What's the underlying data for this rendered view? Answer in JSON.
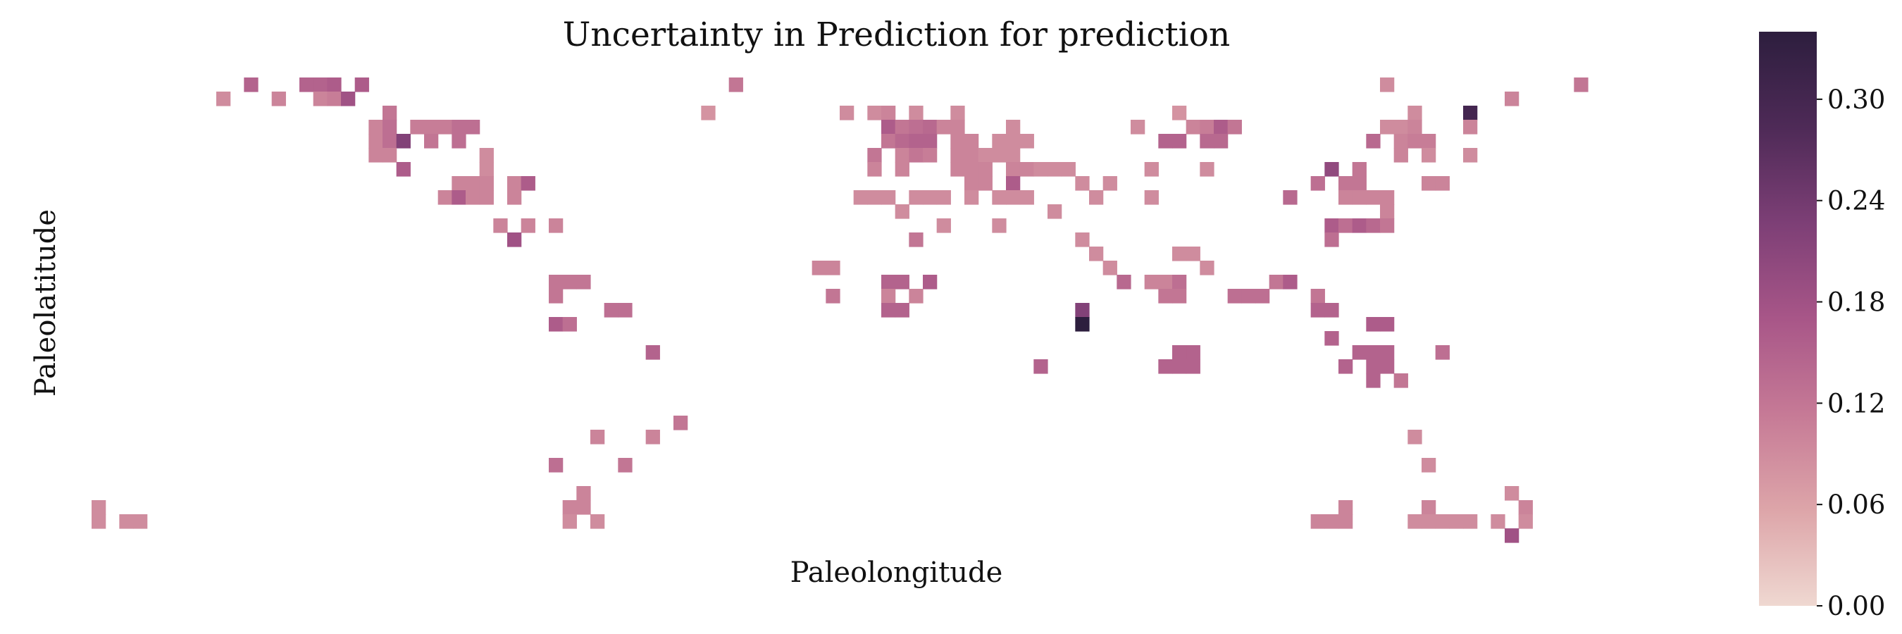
{
  "chart_data": {
    "type": "heatmap",
    "title": "Uncertainty in Prediction for prediction",
    "xlabel": "Paleolongitude",
    "ylabel": "Paleolatitude",
    "grid_shape": [
      36,
      120
    ],
    "colorbar": {
      "vmin": 0.0,
      "vmax": 0.34,
      "ticks": [
        0.0,
        0.06,
        0.12,
        0.18,
        0.24,
        0.3
      ],
      "tick_labels": [
        "0.00",
        "0.06",
        "0.12",
        "0.18",
        "0.24",
        "0.30"
      ],
      "colormap": [
        "#efd8d1",
        "#dda5a9",
        "#c67a96",
        "#a85688",
        "#7d3f76",
        "#4e2a57",
        "#2d1e3e"
      ]
    },
    "cells": [
      [
        2,
        11,
        0.15
      ],
      [
        2,
        15,
        0.15
      ],
      [
        2,
        16,
        0.15
      ],
      [
        2,
        17,
        0.16
      ],
      [
        2,
        19,
        0.16
      ],
      [
        2,
        46,
        0.12
      ],
      [
        2,
        93,
        0.09
      ],
      [
        2,
        107,
        0.12
      ],
      [
        3,
        9,
        0.09
      ],
      [
        3,
        13,
        0.1
      ],
      [
        3,
        16,
        0.1
      ],
      [
        3,
        17,
        0.11
      ],
      [
        3,
        18,
        0.18
      ],
      [
        3,
        102,
        0.1
      ],
      [
        4,
        21,
        0.12
      ],
      [
        4,
        44,
        0.08
      ],
      [
        4,
        54,
        0.09
      ],
      [
        4,
        56,
        0.09
      ],
      [
        4,
        57,
        0.1
      ],
      [
        4,
        59,
        0.09
      ],
      [
        4,
        62,
        0.09
      ],
      [
        4,
        78,
        0.08
      ],
      [
        4,
        95,
        0.09
      ],
      [
        4,
        99,
        0.3
      ],
      [
        5,
        20,
        0.1
      ],
      [
        5,
        21,
        0.13
      ],
      [
        5,
        23,
        0.11
      ],
      [
        5,
        24,
        0.11
      ],
      [
        5,
        25,
        0.11
      ],
      [
        5,
        26,
        0.13
      ],
      [
        5,
        27,
        0.13
      ],
      [
        5,
        57,
        0.16
      ],
      [
        5,
        58,
        0.12
      ],
      [
        5,
        59,
        0.13
      ],
      [
        5,
        60,
        0.14
      ],
      [
        5,
        61,
        0.1
      ],
      [
        5,
        62,
        0.1
      ],
      [
        5,
        66,
        0.09
      ],
      [
        5,
        75,
        0.09
      ],
      [
        5,
        79,
        0.1
      ],
      [
        5,
        80,
        0.11
      ],
      [
        5,
        81,
        0.16
      ],
      [
        5,
        82,
        0.12
      ],
      [
        5,
        93,
        0.09
      ],
      [
        5,
        94,
        0.09
      ],
      [
        5,
        95,
        0.1
      ],
      [
        5,
        99,
        0.1
      ],
      [
        6,
        20,
        0.1
      ],
      [
        6,
        21,
        0.13
      ],
      [
        6,
        22,
        0.22
      ],
      [
        6,
        24,
        0.12
      ],
      [
        6,
        26,
        0.13
      ],
      [
        6,
        57,
        0.12
      ],
      [
        6,
        58,
        0.14
      ],
      [
        6,
        59,
        0.15
      ],
      [
        6,
        60,
        0.15
      ],
      [
        6,
        62,
        0.1
      ],
      [
        6,
        63,
        0.1
      ],
      [
        6,
        65,
        0.09
      ],
      [
        6,
        66,
        0.09
      ],
      [
        6,
        67,
        0.09
      ],
      [
        6,
        77,
        0.15
      ],
      [
        6,
        78,
        0.15
      ],
      [
        6,
        80,
        0.14
      ],
      [
        6,
        81,
        0.14
      ],
      [
        6,
        92,
        0.14
      ],
      [
        6,
        94,
        0.1
      ],
      [
        6,
        95,
        0.11
      ],
      [
        6,
        96,
        0.11
      ],
      [
        7,
        20,
        0.1
      ],
      [
        7,
        21,
        0.1
      ],
      [
        7,
        28,
        0.09
      ],
      [
        7,
        56,
        0.12
      ],
      [
        7,
        58,
        0.1
      ],
      [
        7,
        59,
        0.12
      ],
      [
        7,
        60,
        0.11
      ],
      [
        7,
        62,
        0.1
      ],
      [
        7,
        63,
        0.1
      ],
      [
        7,
        64,
        0.09
      ],
      [
        7,
        65,
        0.09
      ],
      [
        7,
        66,
        0.09
      ],
      [
        7,
        94,
        0.1
      ],
      [
        7,
        96,
        0.09
      ],
      [
        7,
        99,
        0.09
      ],
      [
        8,
        22,
        0.16
      ],
      [
        8,
        28,
        0.09
      ],
      [
        8,
        56,
        0.1
      ],
      [
        8,
        58,
        0.1
      ],
      [
        8,
        62,
        0.1
      ],
      [
        8,
        63,
        0.1
      ],
      [
        8,
        64,
        0.1
      ],
      [
        8,
        66,
        0.1
      ],
      [
        8,
        67,
        0.1
      ],
      [
        8,
        68,
        0.09
      ],
      [
        8,
        69,
        0.09
      ],
      [
        8,
        70,
        0.09
      ],
      [
        8,
        76,
        0.09
      ],
      [
        8,
        80,
        0.09
      ],
      [
        8,
        89,
        0.2
      ],
      [
        8,
        91,
        0.12
      ],
      [
        9,
        26,
        0.1
      ],
      [
        9,
        27,
        0.1
      ],
      [
        9,
        28,
        0.1
      ],
      [
        9,
        30,
        0.1
      ],
      [
        9,
        31,
        0.16
      ],
      [
        9,
        63,
        0.1
      ],
      [
        9,
        64,
        0.1
      ],
      [
        9,
        66,
        0.16
      ],
      [
        9,
        71,
        0.09
      ],
      [
        9,
        73,
        0.09
      ],
      [
        9,
        88,
        0.13
      ],
      [
        9,
        90,
        0.12
      ],
      [
        9,
        91,
        0.12
      ],
      [
        9,
        96,
        0.1
      ],
      [
        9,
        97,
        0.1
      ],
      [
        10,
        25,
        0.1
      ],
      [
        10,
        26,
        0.16
      ],
      [
        10,
        27,
        0.1
      ],
      [
        10,
        28,
        0.1
      ],
      [
        10,
        30,
        0.1
      ],
      [
        10,
        55,
        0.09
      ],
      [
        10,
        56,
        0.09
      ],
      [
        10,
        57,
        0.09
      ],
      [
        10,
        59,
        0.09
      ],
      [
        10,
        60,
        0.09
      ],
      [
        10,
        61,
        0.09
      ],
      [
        10,
        63,
        0.09
      ],
      [
        10,
        65,
        0.09
      ],
      [
        10,
        66,
        0.09
      ],
      [
        10,
        67,
        0.09
      ],
      [
        10,
        72,
        0.09
      ],
      [
        10,
        76,
        0.09
      ],
      [
        10,
        86,
        0.14
      ],
      [
        10,
        90,
        0.1
      ],
      [
        10,
        91,
        0.1
      ],
      [
        10,
        92,
        0.1
      ],
      [
        10,
        93,
        0.1
      ],
      [
        11,
        58,
        0.09
      ],
      [
        11,
        69,
        0.09
      ],
      [
        11,
        93,
        0.1
      ],
      [
        12,
        29,
        0.1
      ],
      [
        12,
        31,
        0.1
      ],
      [
        12,
        33,
        0.1
      ],
      [
        12,
        61,
        0.09
      ],
      [
        12,
        65,
        0.09
      ],
      [
        12,
        89,
        0.16
      ],
      [
        12,
        90,
        0.13
      ],
      [
        12,
        91,
        0.16
      ],
      [
        12,
        92,
        0.14
      ],
      [
        12,
        93,
        0.12
      ],
      [
        13,
        30,
        0.18
      ],
      [
        13,
        59,
        0.12
      ],
      [
        13,
        71,
        0.09
      ],
      [
        13,
        89,
        0.13
      ],
      [
        14,
        72,
        0.09
      ],
      [
        14,
        78,
        0.09
      ],
      [
        14,
        79,
        0.09
      ],
      [
        15,
        52,
        0.1
      ],
      [
        15,
        53,
        0.1
      ],
      [
        15,
        73,
        0.09
      ],
      [
        15,
        80,
        0.09
      ],
      [
        16,
        33,
        0.12
      ],
      [
        16,
        34,
        0.12
      ],
      [
        16,
        35,
        0.12
      ],
      [
        16,
        57,
        0.15
      ],
      [
        16,
        58,
        0.15
      ],
      [
        16,
        60,
        0.16
      ],
      [
        16,
        74,
        0.14
      ],
      [
        16,
        76,
        0.1
      ],
      [
        16,
        77,
        0.1
      ],
      [
        16,
        78,
        0.13
      ],
      [
        16,
        85,
        0.12
      ],
      [
        16,
        86,
        0.16
      ],
      [
        17,
        33,
        0.12
      ],
      [
        17,
        53,
        0.12
      ],
      [
        17,
        57,
        0.1
      ],
      [
        17,
        59,
        0.1
      ],
      [
        17,
        77,
        0.12
      ],
      [
        17,
        78,
        0.12
      ],
      [
        17,
        82,
        0.13
      ],
      [
        17,
        83,
        0.13
      ],
      [
        17,
        84,
        0.13
      ],
      [
        17,
        88,
        0.12
      ],
      [
        18,
        37,
        0.13
      ],
      [
        18,
        38,
        0.13
      ],
      [
        18,
        57,
        0.15
      ],
      [
        18,
        58,
        0.15
      ],
      [
        18,
        71,
        0.22
      ],
      [
        18,
        88,
        0.15
      ],
      [
        18,
        89,
        0.15
      ],
      [
        19,
        33,
        0.16
      ],
      [
        19,
        34,
        0.13
      ],
      [
        19,
        71,
        0.34
      ],
      [
        19,
        92,
        0.16
      ],
      [
        19,
        93,
        0.16
      ],
      [
        20,
        89,
        0.15
      ],
      [
        21,
        40,
        0.15
      ],
      [
        21,
        79,
        0.15
      ],
      [
        21,
        78,
        0.15
      ],
      [
        21,
        91,
        0.15
      ],
      [
        21,
        92,
        0.15
      ],
      [
        21,
        93,
        0.15
      ],
      [
        21,
        97,
        0.13
      ],
      [
        22,
        68,
        0.15
      ],
      [
        22,
        77,
        0.15
      ],
      [
        22,
        78,
        0.15
      ],
      [
        22,
        79,
        0.15
      ],
      [
        22,
        90,
        0.15
      ],
      [
        22,
        92,
        0.15
      ],
      [
        22,
        93,
        0.15
      ],
      [
        23,
        92,
        0.15
      ],
      [
        23,
        94,
        0.12
      ],
      [
        26,
        42,
        0.12
      ],
      [
        27,
        36,
        0.1
      ],
      [
        27,
        40,
        0.1
      ],
      [
        27,
        95,
        0.09
      ],
      [
        29,
        33,
        0.13
      ],
      [
        29,
        38,
        0.12
      ],
      [
        29,
        96,
        0.09
      ],
      [
        31,
        35,
        0.1
      ],
      [
        31,
        102,
        0.09
      ],
      [
        32,
        0,
        0.09
      ],
      [
        32,
        34,
        0.1
      ],
      [
        32,
        35,
        0.1
      ],
      [
        32,
        90,
        0.1
      ],
      [
        32,
        96,
        0.1
      ],
      [
        32,
        103,
        0.1
      ],
      [
        33,
        0,
        0.09
      ],
      [
        33,
        2,
        0.09
      ],
      [
        33,
        3,
        0.09
      ],
      [
        33,
        34,
        0.09
      ],
      [
        33,
        36,
        0.09
      ],
      [
        33,
        88,
        0.1
      ],
      [
        33,
        89,
        0.1
      ],
      [
        33,
        90,
        0.1
      ],
      [
        33,
        95,
        0.09
      ],
      [
        33,
        96,
        0.09
      ],
      [
        33,
        97,
        0.09
      ],
      [
        33,
        98,
        0.09
      ],
      [
        33,
        99,
        0.09
      ],
      [
        33,
        101,
        0.09
      ],
      [
        33,
        103,
        0.09
      ],
      [
        34,
        102,
        0.18
      ]
    ]
  }
}
